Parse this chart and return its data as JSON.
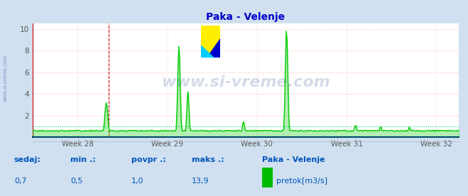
{
  "title": "Paka - Velenje",
  "title_color": "#0000cc",
  "bg_color": "#d0e0f0",
  "plot_bg_color": "#ffffff",
  "grid_color_h": "#ffaaaa",
  "grid_color_v": "#ffcccc",
  "line_color": "#00cc00",
  "fill_color": "#00cc00",
  "avg_line_color": "#00cc88",
  "x_axis_color": "#0000aa",
  "y_axis_color": "#cc0000",
  "watermark_color": "#1a3a8a",
  "watermark_alpha": 0.18,
  "sidebar_text": "www.si-vreme.com",
  "footer_color": "#0055bb",
  "legend_square_color": "#00bb00",
  "avg_value": 1.0,
  "red_vline_x": 28.35,
  "xlim_weeks": [
    27.5,
    32.25
  ],
  "ylim": [
    0,
    10.5
  ],
  "yticks": [
    2,
    4,
    6,
    8,
    10
  ],
  "week_labels": [
    "Week 28",
    "Week 29",
    "Week 30",
    "Week 31",
    "Week 32"
  ],
  "week_positions": [
    28,
    29,
    30,
    31,
    32
  ],
  "num_points": 500,
  "footer_labels": [
    "sedaj:",
    "min .:",
    "povpr .:",
    "maks .:"
  ],
  "footer_values": [
    "0,7",
    "0,5",
    "1,0",
    "13,9"
  ],
  "footer_series_label": "Paka - Velenje",
  "footer_legend_label": "pretok[m3/s]"
}
